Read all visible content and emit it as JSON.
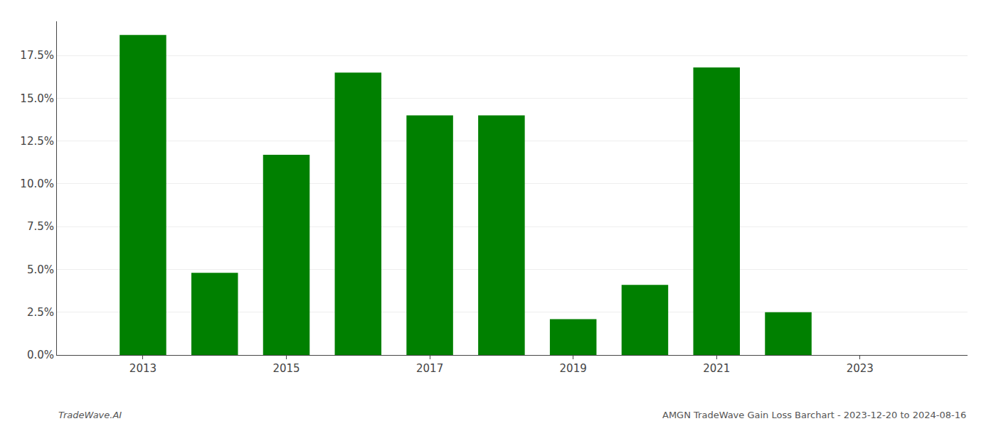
{
  "chart_data": {
    "type": "bar",
    "title": "AMGN TradeWave Gain Loss Barchart - 2023-12-20 to 2024-08-16",
    "annotations": [
      "TradeWave.AI"
    ],
    "x": [
      2013,
      2014,
      2015,
      2016,
      2017,
      2018,
      2019,
      2020,
      2021,
      2022,
      2023
    ],
    "values": [
      0.187,
      0.048,
      0.117,
      0.165,
      0.14,
      0.14,
      0.021,
      0.041,
      0.168,
      0.025,
      0.0
    ],
    "color": "#008000",
    "xlim": [
      2011.8,
      2024.5
    ],
    "xticks": [
      2013,
      2015,
      2017,
      2019,
      2021,
      2023
    ],
    "ylim": [
      0.0,
      0.195
    ],
    "yticks": [
      {
        "value": 0.0,
        "label": "0.0%"
      },
      {
        "value": 0.025,
        "label": "2.5%"
      },
      {
        "value": 0.05,
        "label": "5.0%"
      },
      {
        "value": 0.075,
        "label": "7.5%"
      },
      {
        "value": 0.1,
        "label": "10.0%"
      },
      {
        "value": 0.125,
        "label": "12.5%"
      },
      {
        "value": 0.15,
        "label": "15.0%"
      },
      {
        "value": 0.175,
        "label": "17.5%"
      }
    ],
    "grid": true
  }
}
